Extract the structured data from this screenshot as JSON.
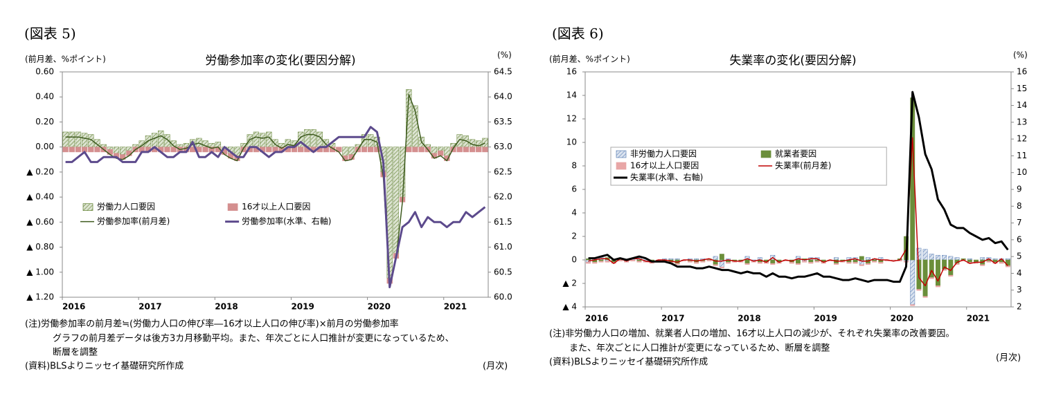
{
  "chart_data": [
    {
      "type": "combo",
      "figure_label": "(図表 5)",
      "title": "労働参加率の変化(要因分解)",
      "y_axis_label": "(前月差、%ポイント)",
      "y2_axis_label": "(%)",
      "x_axis_label": "(月次)",
      "notes": [
        "(注)労働参加率の前月差≒(労働力人口の伸び率―16才以上人口の伸び率)×前月の労働参加率",
        "グラフの前月差データは後方3カ月移動平均。また、年次ごとに人口推計が変更になっているため、",
        "断層を調整"
      ],
      "source": "(資料)BLSよりニッセイ基礎研究所作成",
      "categories": [
        "2016",
        null,
        null,
        null,
        null,
        null,
        null,
        null,
        null,
        null,
        null,
        null,
        "2017",
        null,
        null,
        null,
        null,
        null,
        null,
        null,
        null,
        null,
        null,
        null,
        "2018",
        null,
        null,
        null,
        null,
        null,
        null,
        null,
        null,
        null,
        null,
        null,
        "2019",
        null,
        null,
        null,
        null,
        null,
        null,
        null,
        null,
        null,
        null,
        null,
        "2020",
        null,
        null,
        null,
        null,
        null,
        null,
        null,
        null,
        null,
        null,
        null,
        "2021",
        null,
        null,
        null,
        null,
        null,
        null
      ],
      "stacked": true,
      "legend": "center left",
      "legend_box": false,
      "ylim": [
        -1.2,
        0.6
      ],
      "yticks": [
        {
          "value": -1.2,
          "label": "▲ 1.20"
        },
        {
          "value": -1.0,
          "label": "▲ 1.00"
        },
        {
          "value": -0.8,
          "label": "▲ 0.80"
        },
        {
          "value": -0.6,
          "label": "▲ 0.60"
        },
        {
          "value": -0.4,
          "label": "▲ 0.40"
        },
        {
          "value": -0.2,
          "label": "▲ 0.20"
        },
        {
          "value": 0,
          "label": "0.00"
        },
        {
          "value": 0.2,
          "label": "0.20"
        },
        {
          "value": 0.4,
          "label": "0.40"
        },
        {
          "value": 0.6,
          "label": "0.60"
        }
      ],
      "y2lim": [
        60,
        64.5
      ],
      "y2ticks": [
        {
          "value": 60,
          "label": "60.0"
        },
        60.5,
        {
          "value": 61,
          "label": "61.0"
        },
        61.5,
        {
          "value": 62,
          "label": "62.0"
        },
        62.5,
        {
          "value": 63,
          "label": "63.0"
        },
        63.5,
        {
          "value": 64,
          "label": "64.0"
        },
        64.5
      ],
      "series": [
        {
          "name": "労働力人口要因",
          "kind": "bar",
          "hatch": true,
          "color": "#5e7f2e",
          "values": [
            0.12,
            0.12,
            0.12,
            0.11,
            0.1,
            0.06,
            0.02,
            -0.02,
            -0.05,
            -0.06,
            -0.03,
            0.02,
            0.05,
            0.09,
            0.11,
            0.13,
            0.1,
            0.05,
            0.02,
            0.03,
            0.06,
            0.07,
            0.05,
            0.03,
            0.04,
            -0.02,
            -0.05,
            -0.07,
            0.03,
            0.1,
            0.12,
            0.11,
            0.12,
            0.06,
            0.03,
            0.06,
            0.05,
            0.12,
            0.14,
            0.14,
            0.12,
            0.06,
            0.03,
            0,
            -0.07,
            -0.06,
            0.02,
            0.1,
            0.1,
            0.08,
            -0.2,
            -1.05,
            -0.85,
            -0.4,
            0.46,
            0.33,
            0.08,
            0.02,
            -0.05,
            -0.03,
            -0.07,
            0.03,
            0.1,
            0.09,
            0.06,
            0.05,
            0.07
          ]
        },
        {
          "name": "16才以上人口要因",
          "kind": "bar",
          "hatch": false,
          "color": "#d48f8f",
          "values": [
            -0.04,
            -0.04,
            -0.04,
            -0.04,
            -0.04,
            -0.04,
            -0.04,
            -0.04,
            -0.04,
            -0.04,
            -0.04,
            -0.04,
            -0.04,
            -0.04,
            -0.04,
            -0.04,
            -0.04,
            -0.04,
            -0.04,
            -0.04,
            -0.04,
            -0.04,
            -0.04,
            -0.04,
            -0.04,
            -0.04,
            -0.04,
            -0.04,
            -0.04,
            -0.04,
            -0.04,
            -0.04,
            -0.04,
            -0.04,
            -0.04,
            -0.04,
            -0.04,
            -0.04,
            -0.04,
            -0.04,
            -0.04,
            -0.04,
            -0.04,
            -0.04,
            -0.04,
            -0.04,
            -0.04,
            -0.04,
            -0.04,
            -0.04,
            -0.04,
            -0.04,
            -0.04,
            -0.04,
            -0.04,
            -0.04,
            -0.04,
            -0.04,
            -0.04,
            -0.04,
            -0.04,
            -0.04,
            -0.04,
            -0.04,
            -0.04,
            -0.04,
            -0.04
          ]
        },
        {
          "name": "労働参加率(前月差)",
          "kind": "line",
          "color": "#3d5a1e",
          "values": [
            0.08,
            0.08,
            0.08,
            0.07,
            0.06,
            0.02,
            -0.02,
            -0.06,
            -0.09,
            -0.1,
            -0.07,
            -0.02,
            0.01,
            0.05,
            0.07,
            0.09,
            0.06,
            0.01,
            -0.02,
            -0.01,
            0.02,
            0.03,
            0.01,
            -0.01,
            0,
            -0.06,
            -0.09,
            -0.11,
            -0.01,
            0.06,
            0.08,
            0.07,
            0.08,
            0.02,
            -0.01,
            0.02,
            0.01,
            0.08,
            0.1,
            0.1,
            0.08,
            0.02,
            -0.01,
            -0.04,
            -0.11,
            -0.1,
            -0.02,
            0.06,
            0.06,
            0.04,
            -0.24,
            -1.09,
            -0.89,
            -0.44,
            0.42,
            0.29,
            0.04,
            -0.02,
            -0.09,
            -0.07,
            -0.11,
            -0.01,
            0.06,
            0.05,
            0.02,
            0.01,
            0.03
          ]
        },
        {
          "name": "労働参加率(水準、右軸)",
          "kind": "line",
          "axis": "y2",
          "color": "#5c4a8c",
          "values": [
            62.7,
            62.7,
            62.8,
            62.9,
            62.7,
            62.7,
            62.8,
            62.8,
            62.8,
            62.7,
            62.7,
            62.7,
            62.9,
            62.9,
            63.0,
            62.9,
            62.8,
            62.8,
            62.9,
            62.9,
            63.1,
            62.8,
            62.8,
            62.9,
            62.8,
            63.0,
            62.9,
            62.8,
            62.8,
            63.0,
            63.0,
            62.9,
            62.8,
            62.9,
            62.9,
            63.0,
            63.0,
            63.1,
            63.0,
            62.9,
            63.0,
            63.0,
            63.1,
            63.2,
            63.2,
            63.2,
            63.2,
            63.2,
            63.4,
            63.3,
            62.7,
            60.2,
            60.8,
            61.4,
            61.5,
            61.7,
            61.4,
            61.6,
            61.5,
            61.5,
            61.4,
            61.5,
            61.5,
            61.7,
            61.6,
            61.7,
            61.8
          ]
        }
      ]
    },
    {
      "type": "combo",
      "figure_label": "(図表 6)",
      "title": "失業率の変化(要因分解)",
      "y_axis_label": "(前月差、%ポイント)",
      "y2_axis_label": "(%)",
      "x_axis_label": "(月次)",
      "notes": [
        "(注)非労働力人口の増加、就業者人口の増加、16才以上人口の減少が、それぞれ失業率の改善要因。",
        "また、年次ごとに人口推計が変更になっているため、断層を調整"
      ],
      "source": "(資料)BLSよりニッセイ基礎研究所作成",
      "categories": [
        "2016",
        null,
        null,
        null,
        null,
        null,
        null,
        null,
        null,
        null,
        null,
        null,
        "2017",
        null,
        null,
        null,
        null,
        null,
        null,
        null,
        null,
        null,
        null,
        null,
        "2018",
        null,
        null,
        null,
        null,
        null,
        null,
        null,
        null,
        null,
        null,
        null,
        "2019",
        null,
        null,
        null,
        null,
        null,
        null,
        null,
        null,
        null,
        null,
        null,
        "2020",
        null,
        null,
        null,
        null,
        null,
        null,
        null,
        null,
        null,
        null,
        null,
        "2021",
        null,
        null,
        null,
        null,
        null,
        null
      ],
      "stacked": true,
      "legend": "upper left",
      "legend_box": true,
      "ylim": [
        -4,
        16
      ],
      "yticks": [
        {
          "value": -4,
          "label": "▲ 4"
        },
        {
          "value": -2,
          "label": "▲ 2"
        },
        0,
        2,
        4,
        6,
        8,
        10,
        12,
        14,
        16
      ],
      "y2lim": [
        2,
        16
      ],
      "y2ticks": [
        2,
        3,
        4,
        5,
        6,
        7,
        8,
        9,
        10,
        11,
        12,
        13,
        14,
        15,
        16
      ],
      "series": [
        {
          "name": "非労働力人口要因",
          "kind": "bar",
          "hatch": true,
          "color": "#5b7fb5",
          "values": [
            -0.2,
            0.2,
            0.2,
            -0.1,
            0,
            0,
            0,
            0.1,
            0.2,
            -0.1,
            0,
            0,
            0.1,
            0.1,
            0.1,
            0,
            0.1,
            0.1,
            0.1,
            0,
            0.3,
            -0.6,
            0.1,
            0,
            0,
            0.3,
            -0.1,
            0.2,
            0,
            0.4,
            0,
            0,
            0,
            0.3,
            -0.1,
            0.2,
            0.2,
            0,
            0,
            0.2,
            0,
            0.2,
            0.2,
            -0.4,
            0.2,
            0.1,
            0.2,
            0,
            0,
            0,
            -0.1,
            -3.8,
            1.0,
            0.9,
            0.5,
            0.4,
            0.4,
            0.3,
            0.2,
            0,
            0.1,
            0,
            0.2,
            0.2,
            0.1,
            0.1,
            0.1
          ]
        },
        {
          "name": "就業者要因",
          "kind": "bar",
          "hatch": false,
          "color": "#6b8e3a",
          "values": [
            0.1,
            -0.2,
            -0.1,
            0.2,
            -0.2,
            0.1,
            -0.1,
            0,
            -0.1,
            0,
            -0.2,
            0,
            -0.1,
            -0.2,
            -0.3,
            0,
            -0.1,
            -0.2,
            -0.1,
            0.1,
            -0.4,
            0.5,
            -0.2,
            -0.1,
            -0.1,
            -0.3,
            0,
            -0.2,
            -0.2,
            -0.3,
            -0.2,
            0,
            -0.2,
            -0.3,
            0.1,
            -0.2,
            -0.1,
            -0.2,
            0,
            -0.3,
            -0.1,
            -0.2,
            -0.2,
            0.3,
            -0.3,
            -0.1,
            -0.2,
            0,
            0,
            0.1,
            2.0,
            13.8,
            -2.5,
            -3.1,
            -1.5,
            -2.2,
            -0.8,
            -1.3,
            -0.3,
            0.1,
            -0.2,
            -0.2,
            -0.4,
            -0.1,
            -0.2,
            -0.2,
            -0.5
          ]
        },
        {
          "name": "16才以上人口要因",
          "kind": "bar",
          "hatch": false,
          "color": "#e8a6a6",
          "values": [
            -0.1,
            -0.1,
            -0.1,
            -0.1,
            -0.1,
            -0.1,
            -0.1,
            -0.1,
            -0.1,
            -0.1,
            -0.1,
            -0.1,
            -0.1,
            -0.1,
            -0.1,
            -0.1,
            -0.1,
            -0.1,
            -0.1,
            -0.1,
            -0.1,
            -0.1,
            -0.1,
            -0.1,
            -0.1,
            -0.1,
            -0.1,
            -0.1,
            -0.1,
            -0.1,
            -0.1,
            -0.1,
            -0.1,
            -0.1,
            -0.1,
            -0.1,
            -0.1,
            -0.1,
            -0.1,
            -0.1,
            -0.1,
            -0.1,
            -0.1,
            -0.1,
            -0.1,
            -0.1,
            -0.1,
            -0.1,
            -0.1,
            -0.1,
            -0.1,
            -0.1,
            -0.1,
            -0.1,
            -0.1,
            -0.1,
            -0.1,
            -0.1,
            -0.1,
            -0.1,
            -0.1,
            -0.1,
            -0.1,
            -0.1,
            -0.1,
            -0.1,
            -0.1
          ]
        },
        {
          "name": "失業率(前月差)",
          "kind": "line",
          "color": "#c00000",
          "values": [
            -0.1,
            0,
            0.1,
            0.1,
            -0.3,
            0.1,
            -0.1,
            0.1,
            0.1,
            -0.1,
            -0.2,
            0,
            0,
            -0.1,
            -0.2,
            0,
            0,
            -0.1,
            0,
            0.1,
            -0.1,
            -0.1,
            0,
            -0.1,
            -0.1,
            0.1,
            -0.1,
            0,
            -0.2,
            0.2,
            -0.2,
            0,
            -0.1,
            0.1,
            0,
            0.1,
            0.1,
            -0.2,
            0,
            -0.1,
            -0.1,
            0,
            0.1,
            -0.1,
            -0.1,
            0.1,
            0,
            0,
            -0.1,
            0,
            0.9,
            10.4,
            -1.5,
            -2.2,
            -0.9,
            -1.8,
            -0.6,
            -0.9,
            -0.2,
            0,
            -0.3,
            -0.2,
            -0.2,
            0.1,
            -0.3,
            0.1,
            -0.5
          ]
        },
        {
          "name": "失業率(水準、右軸)",
          "kind": "line",
          "axis": "y2",
          "color": "#000000",
          "values": [
            4.9,
            4.9,
            5.0,
            5.1,
            4.8,
            4.9,
            4.8,
            4.9,
            5.0,
            4.9,
            4.7,
            4.7,
            4.7,
            4.6,
            4.4,
            4.4,
            4.4,
            4.3,
            4.3,
            4.4,
            4.3,
            4.2,
            4.2,
            4.1,
            4.0,
            4.1,
            4.0,
            4.0,
            3.8,
            4.0,
            3.8,
            3.8,
            3.7,
            3.8,
            3.8,
            3.9,
            4.0,
            3.8,
            3.8,
            3.7,
            3.6,
            3.6,
            3.7,
            3.6,
            3.5,
            3.6,
            3.6,
            3.6,
            3.5,
            3.5,
            4.4,
            14.8,
            13.3,
            11.1,
            10.2,
            8.4,
            7.8,
            6.9,
            6.7,
            6.7,
            6.4,
            6.2,
            6.0,
            6.1,
            5.8,
            5.9,
            5.4
          ]
        }
      ]
    }
  ]
}
